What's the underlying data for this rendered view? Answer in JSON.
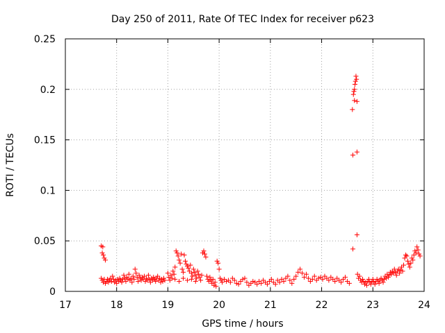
{
  "chart_data": {
    "type": "scatter",
    "title": "Day 250 of 2011, Rate Of TEC Index for receiver p623",
    "xlabel": "GPS time / hours",
    "ylabel": "ROTI / TECUs",
    "xlim": [
      17,
      24
    ],
    "ylim": [
      0,
      0.25
    ],
    "xticks": [
      17,
      18,
      19,
      20,
      21,
      22,
      23,
      24
    ],
    "yticks": [
      0,
      0.05,
      0.1,
      0.15,
      0.2,
      0.25
    ],
    "xtick_labels": [
      "17",
      "18",
      "19",
      "20",
      "21",
      "22",
      "23",
      "24"
    ],
    "ytick_labels": [
      "0",
      "0.05",
      "0.1",
      "0.15",
      "0.2",
      "0.25"
    ],
    "grid": true,
    "marker": "+",
    "series": [
      {
        "name": "p623",
        "color": "#ff0000",
        "points": [
          [
            17.7,
            0.045
          ],
          [
            17.73,
            0.044
          ],
          [
            17.72,
            0.038
          ],
          [
            17.74,
            0.036
          ],
          [
            17.76,
            0.033
          ],
          [
            17.78,
            0.031
          ],
          [
            17.7,
            0.013
          ],
          [
            17.72,
            0.011
          ],
          [
            17.74,
            0.009
          ],
          [
            17.76,
            0.012
          ],
          [
            17.78,
            0.008
          ],
          [
            17.8,
            0.01
          ],
          [
            17.82,
            0.012
          ],
          [
            17.84,
            0.009
          ],
          [
            17.86,
            0.011
          ],
          [
            17.88,
            0.013
          ],
          [
            17.9,
            0.01
          ],
          [
            17.92,
            0.015
          ],
          [
            17.94,
            0.012
          ],
          [
            17.96,
            0.009
          ],
          [
            17.98,
            0.011
          ],
          [
            18.0,
            0.008
          ],
          [
            18.02,
            0.012
          ],
          [
            18.04,
            0.01
          ],
          [
            18.06,
            0.013
          ],
          [
            18.08,
            0.011
          ],
          [
            18.1,
            0.009
          ],
          [
            18.12,
            0.012
          ],
          [
            18.14,
            0.016
          ],
          [
            18.16,
            0.013
          ],
          [
            18.18,
            0.01
          ],
          [
            18.2,
            0.014
          ],
          [
            18.22,
            0.012
          ],
          [
            18.24,
            0.017
          ],
          [
            18.26,
            0.011
          ],
          [
            18.28,
            0.013
          ],
          [
            18.3,
            0.009
          ],
          [
            18.32,
            0.015
          ],
          [
            18.34,
            0.012
          ],
          [
            18.36,
            0.022
          ],
          [
            18.38,
            0.018
          ],
          [
            18.4,
            0.014
          ],
          [
            18.42,
            0.01
          ],
          [
            18.44,
            0.016
          ],
          [
            18.46,
            0.013
          ],
          [
            18.48,
            0.011
          ],
          [
            18.5,
            0.014
          ],
          [
            18.52,
            0.012
          ],
          [
            18.54,
            0.015
          ],
          [
            18.56,
            0.01
          ],
          [
            18.58,
            0.013
          ],
          [
            18.6,
            0.011
          ],
          [
            18.62,
            0.016
          ],
          [
            18.64,
            0.012
          ],
          [
            18.66,
            0.009
          ],
          [
            18.68,
            0.013
          ],
          [
            18.7,
            0.011
          ],
          [
            18.72,
            0.014
          ],
          [
            18.74,
            0.012
          ],
          [
            18.76,
            0.01
          ],
          [
            18.78,
            0.013
          ],
          [
            18.8,
            0.015
          ],
          [
            18.82,
            0.011
          ],
          [
            18.84,
            0.013
          ],
          [
            18.86,
            0.009
          ],
          [
            18.88,
            0.012
          ],
          [
            18.9,
            0.01
          ],
          [
            18.92,
            0.013
          ],
          [
            18.94,
            0.011
          ],
          [
            19.0,
            0.018
          ],
          [
            19.02,
            0.014
          ],
          [
            19.04,
            0.011
          ],
          [
            19.06,
            0.016
          ],
          [
            19.08,
            0.013
          ],
          [
            19.1,
            0.02
          ],
          [
            19.12,
            0.017
          ],
          [
            19.14,
            0.024
          ],
          [
            19.16,
            0.04
          ],
          [
            19.18,
            0.038
          ],
          [
            19.2,
            0.035
          ],
          [
            19.22,
            0.031
          ],
          [
            19.24,
            0.028
          ],
          [
            19.26,
            0.037
          ],
          [
            19.28,
            0.022
          ],
          [
            19.3,
            0.019
          ],
          [
            19.32,
            0.036
          ],
          [
            19.34,
            0.03
          ],
          [
            19.36,
            0.027
          ],
          [
            19.38,
            0.025
          ],
          [
            19.4,
            0.023
          ],
          [
            19.42,
            0.02
          ],
          [
            19.44,
            0.026
          ],
          [
            19.46,
            0.018
          ],
          [
            19.48,
            0.015
          ],
          [
            19.5,
            0.022
          ],
          [
            19.52,
            0.019
          ],
          [
            19.54,
            0.016
          ],
          [
            19.56,
            0.013
          ],
          [
            19.58,
            0.02
          ],
          [
            19.6,
            0.017
          ],
          [
            19.62,
            0.014
          ],
          [
            19.64,
            0.011
          ],
          [
            19.66,
            0.016
          ],
          [
            19.68,
            0.038
          ],
          [
            19.7,
            0.04
          ],
          [
            19.72,
            0.037
          ],
          [
            19.74,
            0.034
          ],
          [
            19.76,
            0.015
          ],
          [
            19.78,
            0.012
          ],
          [
            19.8,
            0.01
          ],
          [
            19.82,
            0.014
          ],
          [
            19.84,
            0.011
          ],
          [
            19.86,
            0.008
          ],
          [
            19.88,
            0.012
          ],
          [
            19.9,
            0.006
          ],
          [
            19.92,
            0.009
          ],
          [
            19.94,
            0.005
          ],
          [
            19.96,
            0.03
          ],
          [
            19.98,
            0.028
          ],
          [
            20.0,
            0.022
          ],
          [
            20.02,
            0.013
          ],
          [
            20.04,
            0.011
          ],
          [
            20.06,
            0.009
          ],
          [
            19.14,
            0.012
          ],
          [
            19.22,
            0.01
          ],
          [
            19.3,
            0.013
          ],
          [
            19.38,
            0.011
          ],
          [
            19.46,
            0.012
          ],
          [
            19.54,
            0.01
          ],
          [
            20.1,
            0.012
          ],
          [
            20.14,
            0.01
          ],
          [
            20.18,
            0.011
          ],
          [
            20.22,
            0.009
          ],
          [
            20.26,
            0.013
          ],
          [
            20.3,
            0.011
          ],
          [
            20.34,
            0.008
          ],
          [
            20.38,
            0.007
          ],
          [
            20.42,
            0.01
          ],
          [
            20.46,
            0.012
          ],
          [
            20.5,
            0.013
          ],
          [
            20.54,
            0.009
          ],
          [
            20.58,
            0.006
          ],
          [
            20.62,
            0.008
          ],
          [
            20.66,
            0.01
          ],
          [
            20.7,
            0.009
          ],
          [
            20.74,
            0.007
          ],
          [
            20.78,
            0.01
          ],
          [
            20.82,
            0.008
          ],
          [
            20.86,
            0.011
          ],
          [
            20.9,
            0.009
          ],
          [
            20.94,
            0.007
          ],
          [
            20.98,
            0.01
          ],
          [
            21.02,
            0.012
          ],
          [
            21.06,
            0.009
          ],
          [
            21.1,
            0.007
          ],
          [
            21.14,
            0.011
          ],
          [
            21.18,
            0.009
          ],
          [
            21.22,
            0.012
          ],
          [
            21.26,
            0.01
          ],
          [
            21.3,
            0.013
          ],
          [
            21.34,
            0.015
          ],
          [
            21.38,
            0.011
          ],
          [
            21.42,
            0.008
          ],
          [
            21.46,
            0.012
          ],
          [
            21.5,
            0.015
          ],
          [
            21.54,
            0.019
          ],
          [
            21.58,
            0.022
          ],
          [
            21.62,
            0.018
          ],
          [
            21.66,
            0.014
          ],
          [
            21.7,
            0.017
          ],
          [
            21.74,
            0.013
          ],
          [
            21.78,
            0.01
          ],
          [
            21.82,
            0.012
          ],
          [
            21.86,
            0.015
          ],
          [
            21.9,
            0.011
          ],
          [
            21.94,
            0.013
          ],
          [
            21.98,
            0.014
          ],
          [
            22.02,
            0.012
          ],
          [
            22.06,
            0.015
          ],
          [
            22.1,
            0.013
          ],
          [
            22.14,
            0.011
          ],
          [
            22.18,
            0.014
          ],
          [
            22.22,
            0.012
          ],
          [
            22.26,
            0.01
          ],
          [
            22.3,
            0.013
          ],
          [
            22.34,
            0.011
          ],
          [
            22.38,
            0.009
          ],
          [
            22.42,
            0.012
          ],
          [
            22.46,
            0.014
          ],
          [
            22.5,
            0.01
          ],
          [
            22.54,
            0.008
          ],
          [
            22.6,
            0.18
          ],
          [
            22.62,
            0.195
          ],
          [
            22.63,
            0.198
          ],
          [
            22.64,
            0.2
          ],
          [
            22.65,
            0.205
          ],
          [
            22.66,
            0.208
          ],
          [
            22.67,
            0.213
          ],
          [
            22.68,
            0.21
          ],
          [
            22.64,
            0.189
          ],
          [
            22.69,
            0.188
          ],
          [
            22.61,
            0.135
          ],
          [
            22.69,
            0.138
          ],
          [
            22.69,
            0.056
          ],
          [
            22.61,
            0.042
          ],
          [
            22.7,
            0.017
          ],
          [
            22.72,
            0.013
          ],
          [
            22.74,
            0.015
          ],
          [
            22.76,
            0.011
          ],
          [
            22.78,
            0.009
          ],
          [
            22.8,
            0.012
          ],
          [
            22.82,
            0.01
          ],
          [
            22.84,
            0.007
          ],
          [
            22.86,
            0.009
          ],
          [
            22.88,
            0.006
          ],
          [
            22.9,
            0.01
          ],
          [
            22.92,
            0.012
          ],
          [
            22.94,
            0.009
          ],
          [
            22.96,
            0.007
          ],
          [
            22.98,
            0.01
          ],
          [
            23.0,
            0.012
          ],
          [
            23.02,
            0.009
          ],
          [
            23.04,
            0.007
          ],
          [
            23.06,
            0.01
          ],
          [
            23.08,
            0.012
          ],
          [
            23.1,
            0.01
          ],
          [
            23.12,
            0.008
          ],
          [
            23.14,
            0.011
          ],
          [
            23.16,
            0.013
          ],
          [
            23.18,
            0.011
          ],
          [
            23.2,
            0.009
          ],
          [
            23.22,
            0.012
          ],
          [
            23.24,
            0.015
          ],
          [
            23.26,
            0.013
          ],
          [
            23.28,
            0.017
          ],
          [
            23.3,
            0.014
          ],
          [
            23.32,
            0.016
          ],
          [
            23.34,
            0.019
          ],
          [
            23.36,
            0.017
          ],
          [
            23.38,
            0.02
          ],
          [
            23.4,
            0.018
          ],
          [
            23.42,
            0.022
          ],
          [
            23.44,
            0.019
          ],
          [
            23.46,
            0.016
          ],
          [
            23.48,
            0.02
          ],
          [
            23.5,
            0.022
          ],
          [
            23.52,
            0.018
          ],
          [
            23.54,
            0.021
          ],
          [
            23.56,
            0.024
          ],
          [
            23.58,
            0.02
          ],
          [
            23.6,
            0.026
          ],
          [
            23.62,
            0.033
          ],
          [
            23.64,
            0.036
          ],
          [
            23.66,
            0.035
          ],
          [
            23.68,
            0.03
          ],
          [
            23.7,
            0.027
          ],
          [
            23.72,
            0.024
          ],
          [
            23.74,
            0.028
          ],
          [
            23.76,
            0.033
          ],
          [
            23.78,
            0.031
          ],
          [
            23.8,
            0.036
          ],
          [
            23.82,
            0.04
          ],
          [
            23.84,
            0.038
          ],
          [
            23.86,
            0.044
          ],
          [
            23.88,
            0.041
          ],
          [
            23.9,
            0.037
          ],
          [
            23.92,
            0.035
          ]
        ]
      }
    ]
  }
}
